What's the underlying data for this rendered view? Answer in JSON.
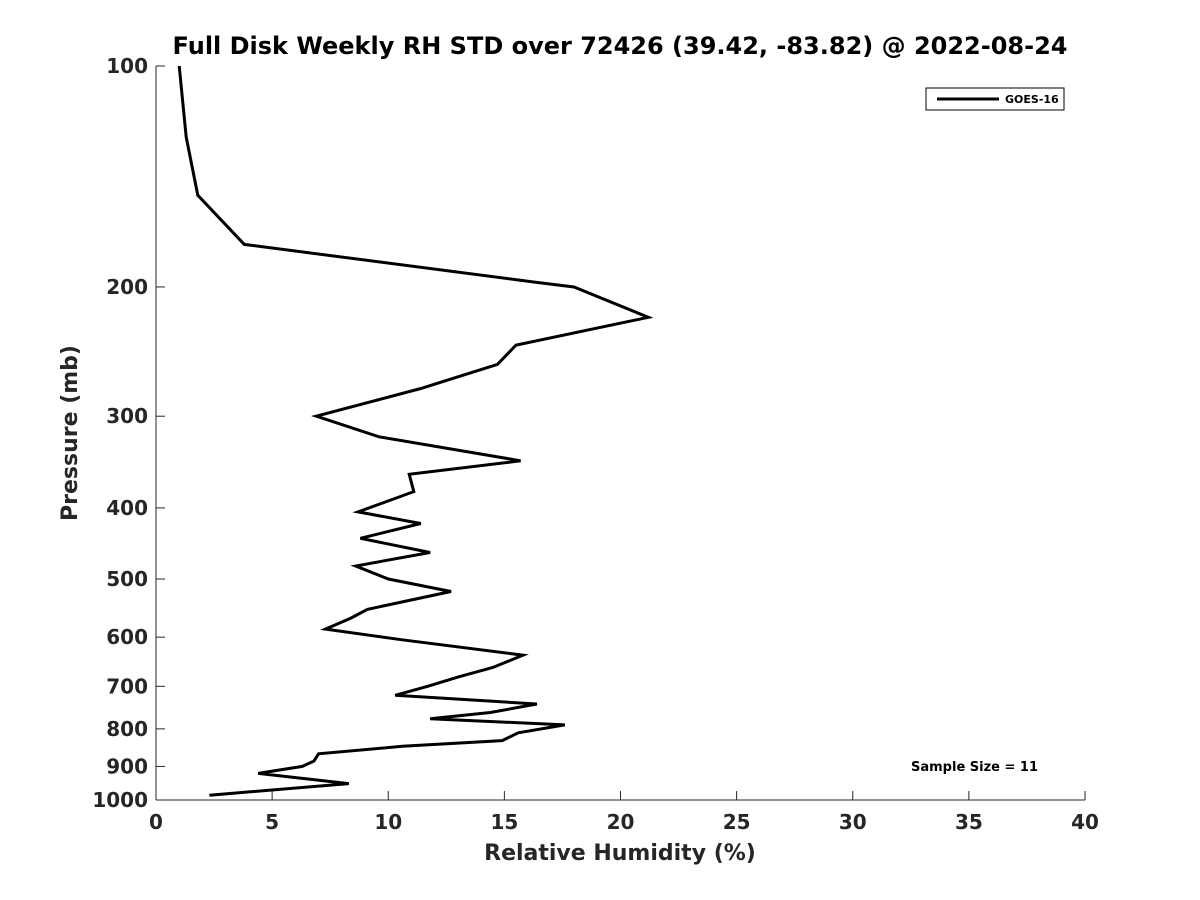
{
  "chart_data": {
    "type": "line",
    "title": "Full Disk Weekly RH STD over 72426 (39.42, -83.82) @ 2022-08-24",
    "xlabel": "Relative Humidity (%)",
    "ylabel": "Pressure (mb)",
    "xlim": [
      0,
      40
    ],
    "ylim": [
      100,
      1000
    ],
    "y_scale": "log",
    "y_reversed": true,
    "x_ticks": [
      0,
      5,
      10,
      15,
      20,
      25,
      30,
      35,
      40
    ],
    "y_ticks": [
      100,
      200,
      300,
      400,
      500,
      600,
      700,
      800,
      900,
      1000
    ],
    "grid": false,
    "legend_position": "top-right",
    "series": [
      {
        "name": "GOES-16",
        "color": "#000000",
        "points": [
          [
            1.0,
            100
          ],
          [
            1.3,
            125
          ],
          [
            1.8,
            150
          ],
          [
            3.8,
            175
          ],
          [
            16.3,
            197
          ],
          [
            18.0,
            200
          ],
          [
            21.2,
            220
          ],
          [
            15.5,
            240
          ],
          [
            14.7,
            255
          ],
          [
            11.4,
            275
          ],
          [
            6.9,
            300
          ],
          [
            9.6,
            320
          ],
          [
            15.7,
            345
          ],
          [
            10.9,
            360
          ],
          [
            11.1,
            380
          ],
          [
            8.7,
            405
          ],
          [
            11.4,
            420
          ],
          [
            8.8,
            440
          ],
          [
            11.8,
            460
          ],
          [
            8.6,
            480
          ],
          [
            10.0,
            500
          ],
          [
            12.7,
            520
          ],
          [
            9.1,
            550
          ],
          [
            8.4,
            565
          ],
          [
            7.3,
            585
          ],
          [
            10.6,
            605
          ],
          [
            15.8,
            635
          ],
          [
            14.5,
            660
          ],
          [
            13.0,
            680
          ],
          [
            11.7,
            700
          ],
          [
            10.3,
            720
          ],
          [
            16.4,
            740
          ],
          [
            14.4,
            760
          ],
          [
            11.8,
            775
          ],
          [
            17.6,
            790
          ],
          [
            15.6,
            810
          ],
          [
            14.9,
            830
          ],
          [
            10.6,
            845
          ],
          [
            7.0,
            865
          ],
          [
            6.8,
            885
          ],
          [
            6.3,
            900
          ],
          [
            4.4,
            920
          ],
          [
            8.3,
            950
          ],
          [
            2.3,
            985
          ]
        ]
      }
    ],
    "annotations": [
      "Sample Size = 11"
    ]
  }
}
